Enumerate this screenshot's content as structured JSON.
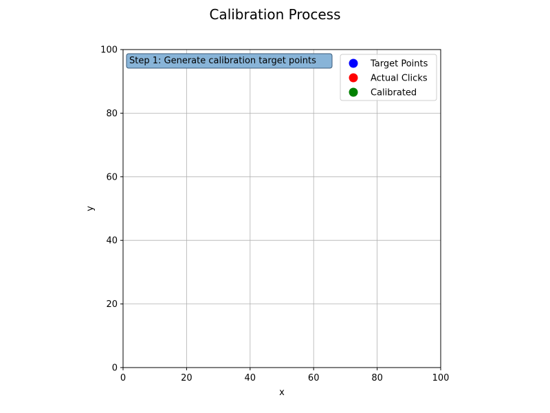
{
  "chart_data": {
    "type": "scatter",
    "title": "Calibration Process",
    "xlabel": "x",
    "ylabel": "y",
    "xlim": [
      0,
      100
    ],
    "ylim": [
      0,
      100
    ],
    "xticks": [
      0,
      20,
      40,
      60,
      80,
      100
    ],
    "yticks": [
      0,
      20,
      40,
      60,
      80,
      100
    ],
    "grid": true,
    "legend_position": "top-right",
    "series": [
      {
        "name": "Target Points",
        "color": "#0000ff",
        "points": []
      },
      {
        "name": "Actual Clicks",
        "color": "#ff0000",
        "points": []
      },
      {
        "name": "Calibrated",
        "color": "#008000",
        "points": []
      }
    ],
    "annotation": {
      "text": "Step 1: Generate calibration target points",
      "background": "#88b4d8",
      "border": "#3a5a78"
    }
  }
}
